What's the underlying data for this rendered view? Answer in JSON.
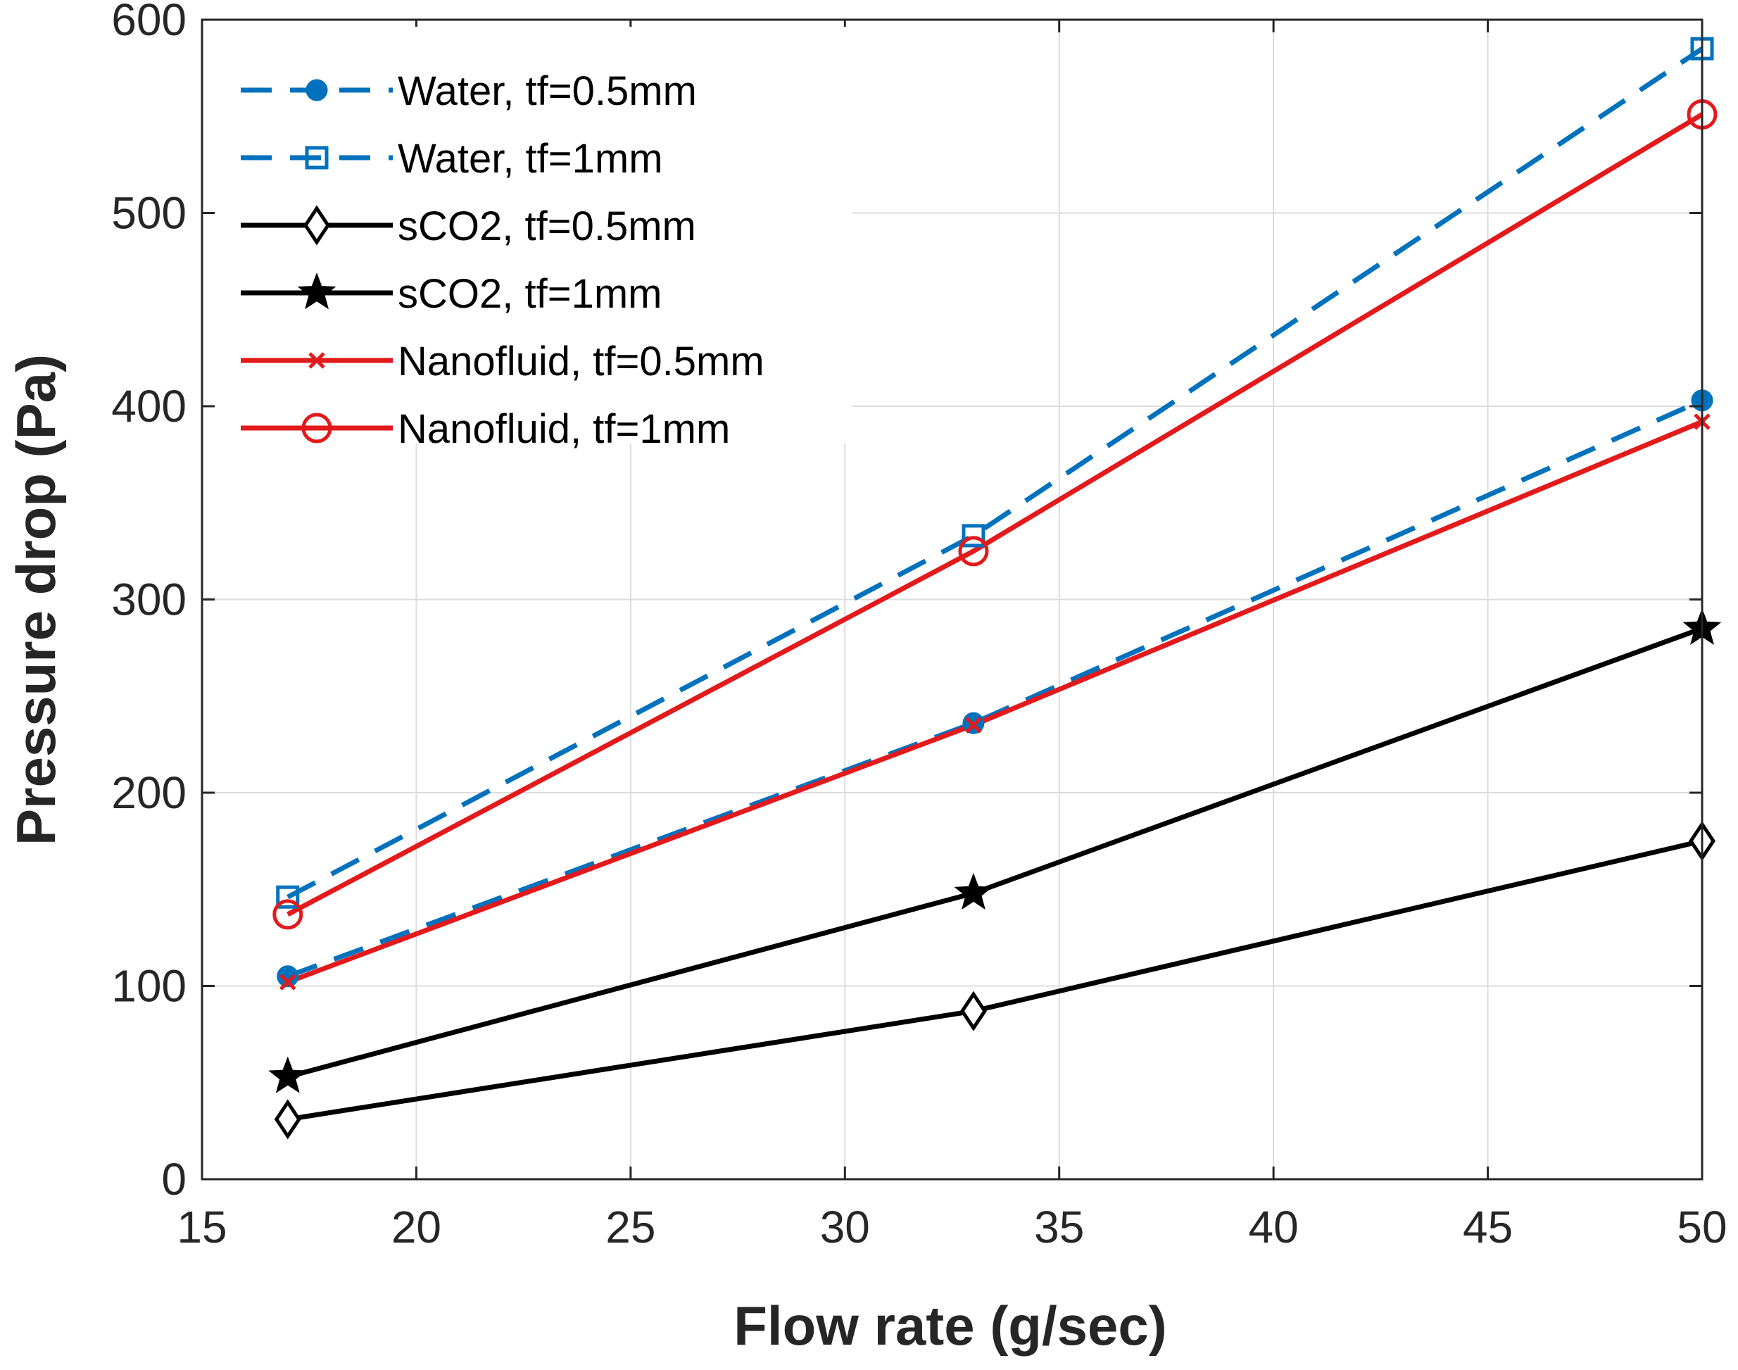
{
  "chart_data": {
    "type": "line",
    "title": "",
    "xlabel": "Flow rate (g/sec)",
    "ylabel": "Pressure drop (Pa)",
    "xlim": [
      15,
      50
    ],
    "ylim": [
      0,
      600
    ],
    "xticks": [
      "15",
      "20",
      "25",
      "30",
      "35",
      "40",
      "45",
      "50"
    ],
    "yticks": [
      "0",
      "100",
      "200",
      "300",
      "400",
      "500",
      "600"
    ],
    "grid": true,
    "legend_position": "top-left",
    "x": [
      17,
      33,
      50
    ],
    "series": [
      {
        "name": "Water, tf=0.5mm",
        "values": [
          105,
          236,
          403
        ],
        "color": "#0072BD",
        "line": "dashed",
        "marker": "circle-filled"
      },
      {
        "name": "Water, tf=1mm",
        "values": [
          146,
          333,
          585
        ],
        "color": "#0072BD",
        "line": "dashed",
        "marker": "square"
      },
      {
        "name": "sCO2, tf=0.5mm",
        "values": [
          31,
          87,
          175
        ],
        "color": "#000000",
        "line": "solid",
        "marker": "diamond"
      },
      {
        "name": "sCO2, tf=1mm",
        "values": [
          53,
          148,
          285
        ],
        "color": "#000000",
        "line": "solid",
        "marker": "star"
      },
      {
        "name": "Nanofluid, tf=0.5mm",
        "values": [
          102,
          235,
          392
        ],
        "color": "#E31A1C",
        "line": "solid",
        "marker": "x"
      },
      {
        "name": "Nanofluid, tf=1mm",
        "values": [
          137,
          325,
          551
        ],
        "color": "#E31A1C",
        "line": "solid",
        "marker": "circle-open"
      }
    ]
  }
}
